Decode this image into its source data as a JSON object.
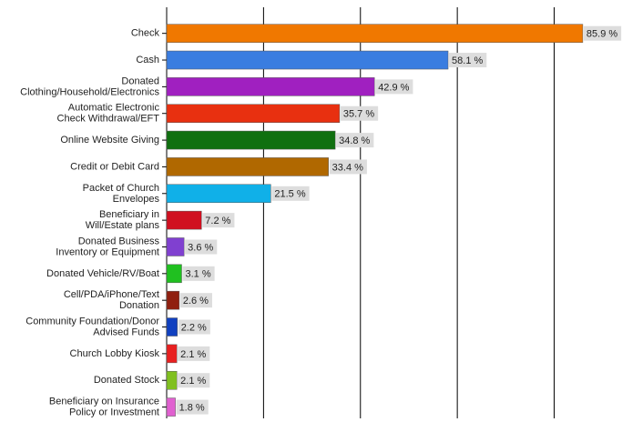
{
  "chart_data": {
    "type": "bar",
    "orientation": "horizontal",
    "categories": [
      "Check",
      "Cash",
      "Donated\nClothing/Household/Electronics",
      "Automatic Electronic\nCheck Withdrawal/EFT",
      "Online Website Giving",
      "Credit or Debit Card",
      "Packet of Church\nEnvelopes",
      "Beneficiary in\nWill/Estate plans",
      "Donated Business\nInventory or Equipment",
      "Donated Vehicle/RV/Boat",
      "Cell/PDA/iPhone/Text\nDonation",
      "Community Foundation/Donor\nAdvised Funds",
      "Church Lobby Kiosk",
      "Donated Stock",
      "Beneficiary on Insurance\nPolicy or Investment"
    ],
    "values": [
      85.9,
      58.1,
      42.9,
      35.7,
      34.8,
      33.4,
      21.5,
      7.2,
      3.6,
      3.1,
      2.6,
      2.2,
      2.1,
      2.1,
      1.8
    ],
    "value_labels": [
      "85.9 %",
      "58.1 %",
      "42.9 %",
      "35.7 %",
      "34.8 %",
      "33.4 %",
      "21.5 %",
      "7.2 %",
      "3.6 %",
      "3.1 %",
      "2.6 %",
      "2.2 %",
      "2.1 %",
      "2.1 %",
      "1.8 %"
    ],
    "colors": [
      "#f07800",
      "#3a7de0",
      "#a020c0",
      "#e83010",
      "#107010",
      "#b06800",
      "#10b0e8",
      "#d01020",
      "#8040d0",
      "#20c020",
      "#902010",
      "#1040c0",
      "#e82020",
      "#80c020",
      "#e060d0"
    ],
    "xlim": [
      0,
      94
    ],
    "xticks": [
      0,
      20,
      40,
      60,
      80
    ],
    "grid": true
  }
}
